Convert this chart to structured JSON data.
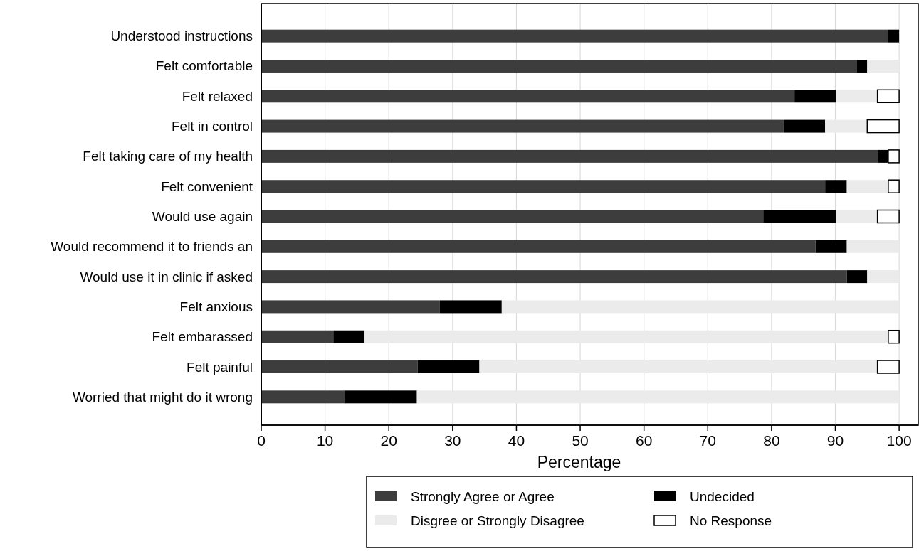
{
  "chart_data": {
    "type": "bar",
    "orientation": "horizontal",
    "stacked": true,
    "xlabel": "Percentage",
    "categories": [
      "Understood instructions",
      "Felt comfortable",
      "Felt relaxed",
      "Felt in control",
      "Felt taking care of my health",
      "Felt convenient",
      "Would use again",
      "Would recommend it to friends an",
      "Would use it in clinic if asked",
      "Felt anxious",
      "Felt embarassed",
      "Felt painful",
      "Worried that might do it wrong"
    ],
    "series": [
      {
        "name": "Strongly Agree or Agree",
        "color": "#3d3d3d",
        "values": [
          98.3,
          93.4,
          83.6,
          81.9,
          96.7,
          88.4,
          78.7,
          86.9,
          91.8,
          28.0,
          11.3,
          24.5,
          13.1
        ]
      },
      {
        "name": "Undecided",
        "color": "#000000",
        "values": [
          1.7,
          1.6,
          6.5,
          6.5,
          1.6,
          3.4,
          11.4,
          4.9,
          3.2,
          9.7,
          4.9,
          9.7,
          11.3
        ]
      },
      {
        "name": "Disgree or Strongly Disagree",
        "color": "#ebebeb",
        "values": [
          0,
          5.0,
          6.5,
          6.6,
          0,
          6.5,
          6.5,
          8.2,
          5.0,
          62.3,
          82.1,
          62.4,
          75.6
        ]
      },
      {
        "name": "No Response",
        "color": "#ffffff",
        "values": [
          0,
          0,
          3.4,
          5.0,
          1.7,
          1.7,
          3.4,
          0,
          0,
          0,
          1.7,
          3.4,
          0
        ]
      }
    ],
    "xlim": [
      0,
      103
    ],
    "xticks": [
      0,
      10,
      20,
      30,
      40,
      50,
      60,
      70,
      80,
      90,
      100
    ],
    "grid": "x",
    "legend": "bottom"
  }
}
